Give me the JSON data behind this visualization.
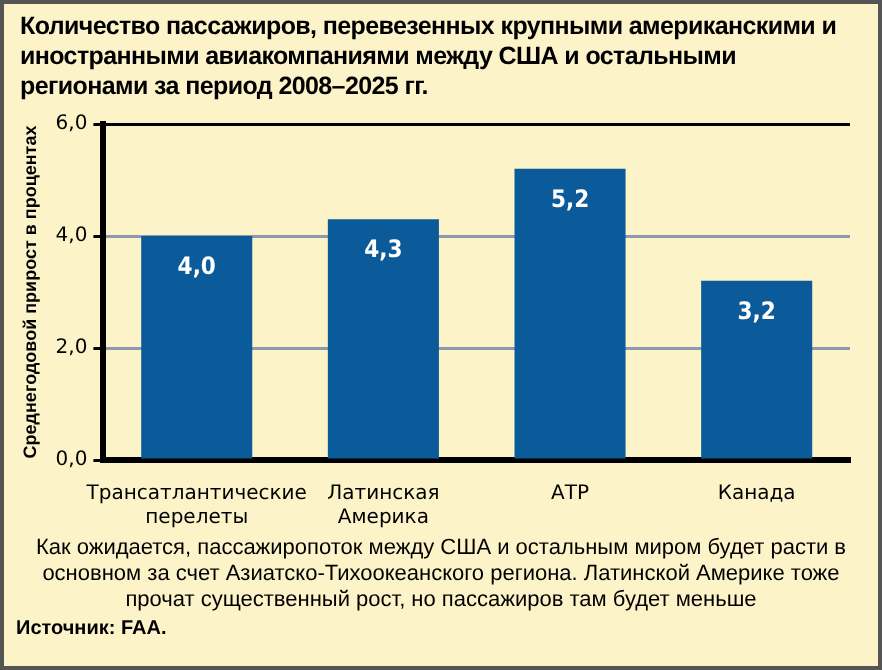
{
  "chart_data": {
    "type": "bar",
    "title": "Количество пассажиров, перевезенных крупными американскими и иностранными авиакомпаниями между США и остальными регионами за период 2008–2025 гг.",
    "ylabel": "Среднегодовой прирост в процентах",
    "categories": [
      "Трансатлантические перелеты",
      "Латинская Америка",
      "АТР",
      "Канада"
    ],
    "values": [
      4.0,
      4.3,
      5.2,
      3.2
    ],
    "value_labels": [
      "4,0",
      "4,3",
      "5,2",
      "3,2"
    ],
    "color": "#0b5a9a",
    "ylim": [
      0,
      6
    ],
    "yticks": [
      {
        "value": 0,
        "label": "0,0"
      },
      {
        "value": 2,
        "label": "2,0"
      },
      {
        "value": 4,
        "label": "4,0"
      },
      {
        "value": 6,
        "label": "6,0"
      }
    ],
    "grid": "y",
    "annotations": [
      "Как ожидается, пассажиропоток между США и остальным миром будет расти в основном за счет Азиатско-Тихоокеанского региона. Латинской Америке тоже прочат существенный рост, но пассажиров там будет меньше",
      "Источник: FAA."
    ]
  }
}
